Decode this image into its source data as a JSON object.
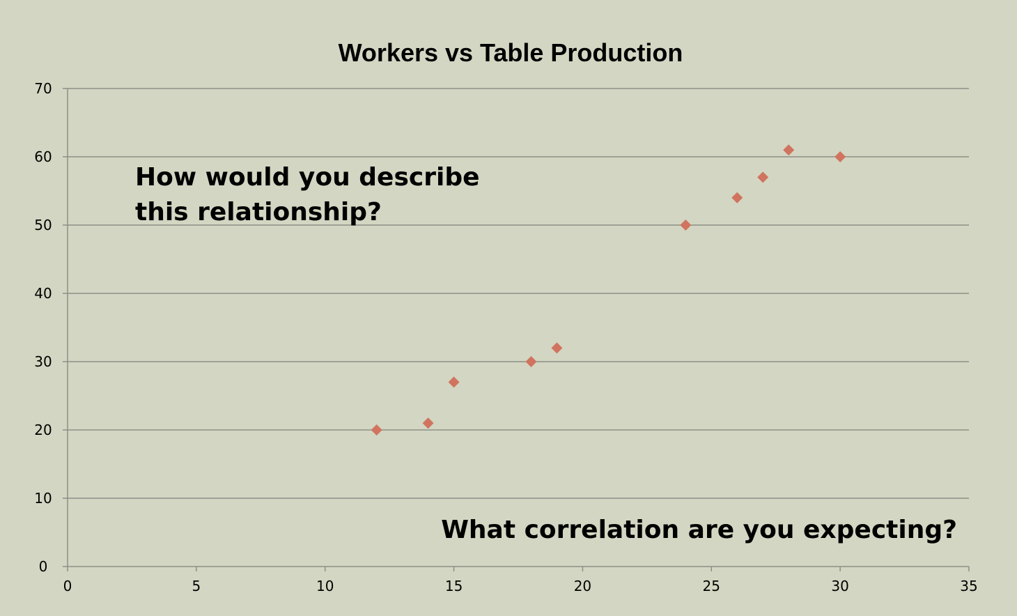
{
  "chart_data": {
    "type": "scatter",
    "title": "Workers vs Table Production",
    "xlabel": "",
    "ylabel": "",
    "xlim": [
      0,
      35
    ],
    "ylim": [
      0,
      70
    ],
    "x_ticks": [
      "0",
      "5",
      "10",
      "15",
      "20",
      "25",
      "30",
      "35"
    ],
    "y_ticks": [
      "0",
      "10",
      "20",
      "30",
      "40",
      "50",
      "60",
      "70"
    ],
    "grid": "horizontal",
    "legend": "none",
    "marker": "diamond",
    "series": [
      {
        "color": "#d0745f",
        "points": [
          {
            "x": 12,
            "y": 20
          },
          {
            "x": 14,
            "y": 21
          },
          {
            "x": 15,
            "y": 27
          },
          {
            "x": 18,
            "y": 30
          },
          {
            "x": 19,
            "y": 32
          },
          {
            "x": 24,
            "y": 50
          },
          {
            "x": 26,
            "y": 54
          },
          {
            "x": 27,
            "y": 57
          },
          {
            "x": 28,
            "y": 61
          },
          {
            "x": 30,
            "y": 60
          }
        ]
      }
    ],
    "annotations": [
      {
        "lines": [
          "How would you describe",
          "this relationship?"
        ]
      },
      {
        "lines": [
          "What correlation are you expecting?"
        ]
      }
    ]
  },
  "colors": {
    "background": "#d3d6c2",
    "gridline": "#8e8f88",
    "marker": "#d0745f",
    "text": "#000000"
  }
}
